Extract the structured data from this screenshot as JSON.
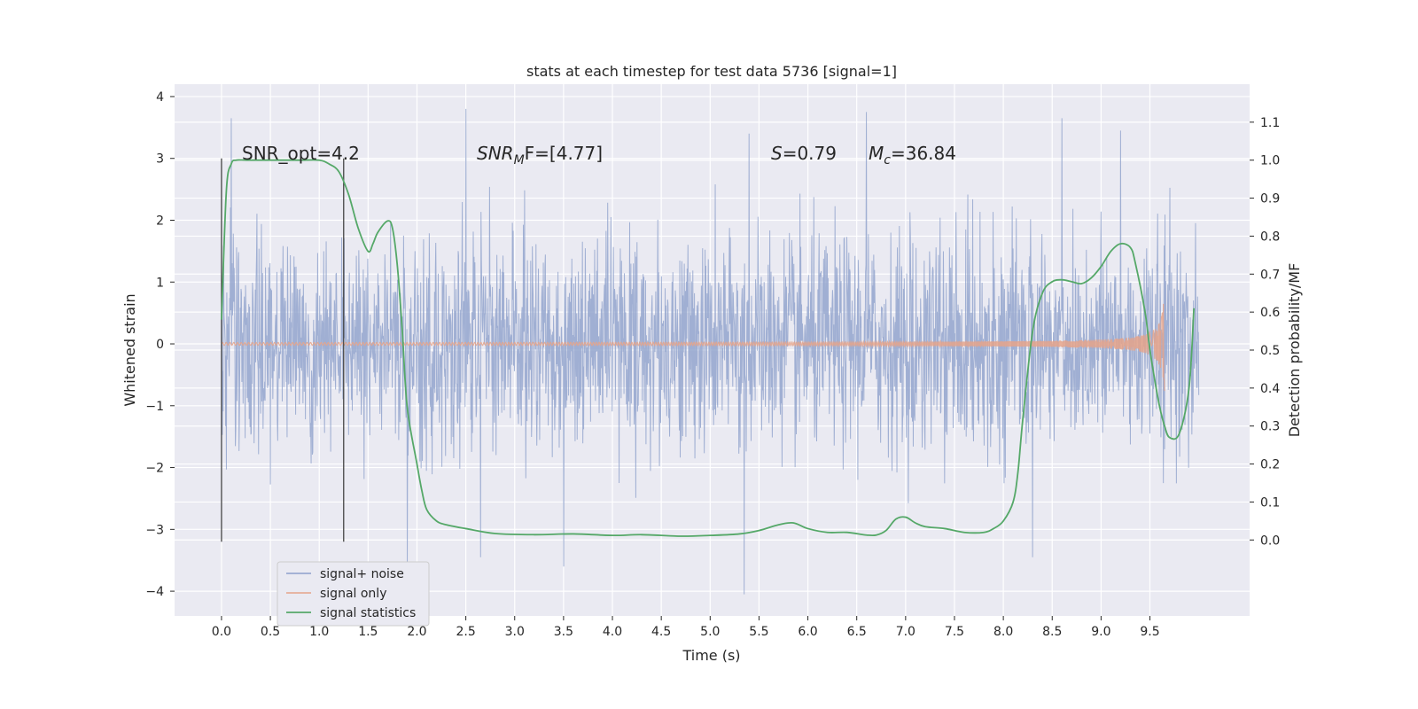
{
  "chart_data": {
    "type": "line",
    "title": "stats at each timestep for test data 5736 [signal=1]",
    "xlabel": "Time (s)",
    "ylabel": "Whitened strain",
    "y2label": "Detection probability/MF",
    "xlim": [
      -0.48,
      10.52
    ],
    "ylim": [
      -4.4,
      4.2
    ],
    "y2lim": [
      -0.2,
      1.2
    ],
    "xticks": [
      "0.0",
      "0.5",
      "1.0",
      "1.5",
      "2.0",
      "2.5",
      "3.0",
      "3.5",
      "4.0",
      "4.5",
      "5.0",
      "5.5",
      "6.0",
      "6.5",
      "7.0",
      "7.5",
      "8.0",
      "8.5",
      "9.0",
      "9.5"
    ],
    "yticks": [
      "4",
      "3",
      "2",
      "1",
      "0",
      "−1",
      "−2",
      "−3",
      "−4"
    ],
    "y2ticks": [
      "1.1",
      "1.0",
      "0.9",
      "0.8",
      "0.7",
      "0.6",
      "0.5",
      "0.4",
      "0.3",
      "0.2",
      "0.1",
      "0.0"
    ],
    "grid": true,
    "legend_position": "lower-left",
    "annotations": {
      "snr_opt": "SNR_opt=4.2",
      "snr_mf_label": "SNR",
      "snr_mf_sub": "M",
      "snr_mf_tail": "F=[4.77]",
      "s_label": "S",
      "s_value": "=0.79",
      "mc_label": "M",
      "mc_sub": "c",
      "mc_value": "=36.84"
    },
    "vlines": [
      {
        "x": 0.0,
        "y_range": [
          -3.2,
          3.0
        ]
      },
      {
        "x": 1.25,
        "y_range": [
          -3.2,
          3.0
        ]
      }
    ],
    "series": [
      {
        "name": "signal+ noise",
        "color": "#8da0cb",
        "x_range": [
          0.0,
          10.0
        ],
        "typical_abs_max": 2.6,
        "peaks": [
          [
            0.1,
            3.65
          ],
          [
            2.5,
            3.8
          ],
          [
            5.4,
            3.4
          ],
          [
            6.6,
            3.75
          ],
          [
            8.6,
            3.65
          ],
          [
            9.2,
            3.45
          ],
          [
            1.9,
            -3.6
          ],
          [
            3.5,
            -3.6
          ],
          [
            5.35,
            -4.05
          ],
          [
            2.65,
            -3.45
          ],
          [
            8.3,
            -3.45
          ]
        ]
      },
      {
        "name": "signal only",
        "color": "#e5a38a",
        "x_range": [
          0.0,
          9.65
        ],
        "shape": "chirp",
        "amplitude_end": 0.95
      },
      {
        "name": "signal statistics",
        "color": "#55a868",
        "axis": "right",
        "x": [
          0.0,
          0.05,
          0.1,
          0.15,
          0.25,
          0.4,
          0.6,
          0.8,
          1.0,
          1.1,
          1.2,
          1.3,
          1.4,
          1.5,
          1.55,
          1.6,
          1.7,
          1.75,
          1.8,
          1.85,
          1.9,
          2.0,
          2.05,
          2.1,
          2.2,
          2.3,
          2.5,
          2.8,
          3.2,
          3.6,
          4.0,
          4.3,
          4.7,
          5.0,
          5.3,
          5.5,
          5.7,
          5.85,
          6.0,
          6.2,
          6.4,
          6.6,
          6.7,
          6.8,
          6.9,
          7.0,
          7.1,
          7.2,
          7.4,
          7.6,
          7.8,
          7.9,
          8.0,
          8.1,
          8.15,
          8.2,
          8.3,
          8.4,
          8.5,
          8.6,
          8.7,
          8.8,
          8.9,
          9.0,
          9.1,
          9.2,
          9.3,
          9.35,
          9.45,
          9.5,
          9.55,
          9.6,
          9.65,
          9.7,
          9.8,
          9.9,
          9.95
        ],
        "values": [
          0.58,
          0.92,
          0.99,
          1.0,
          1.0,
          1.0,
          1.0,
          1.0,
          1.0,
          0.99,
          0.97,
          0.91,
          0.82,
          0.76,
          0.78,
          0.81,
          0.84,
          0.82,
          0.72,
          0.55,
          0.35,
          0.2,
          0.13,
          0.08,
          0.05,
          0.04,
          0.03,
          0.017,
          0.014,
          0.016,
          0.012,
          0.014,
          0.01,
          0.012,
          0.016,
          0.025,
          0.04,
          0.045,
          0.03,
          0.02,
          0.02,
          0.013,
          0.013,
          0.025,
          0.055,
          0.06,
          0.045,
          0.035,
          0.03,
          0.02,
          0.02,
          0.03,
          0.05,
          0.1,
          0.18,
          0.32,
          0.55,
          0.65,
          0.68,
          0.685,
          0.68,
          0.675,
          0.69,
          0.72,
          0.76,
          0.78,
          0.77,
          0.73,
          0.6,
          0.5,
          0.42,
          0.35,
          0.3,
          0.27,
          0.28,
          0.4,
          0.61
        ]
      }
    ]
  }
}
